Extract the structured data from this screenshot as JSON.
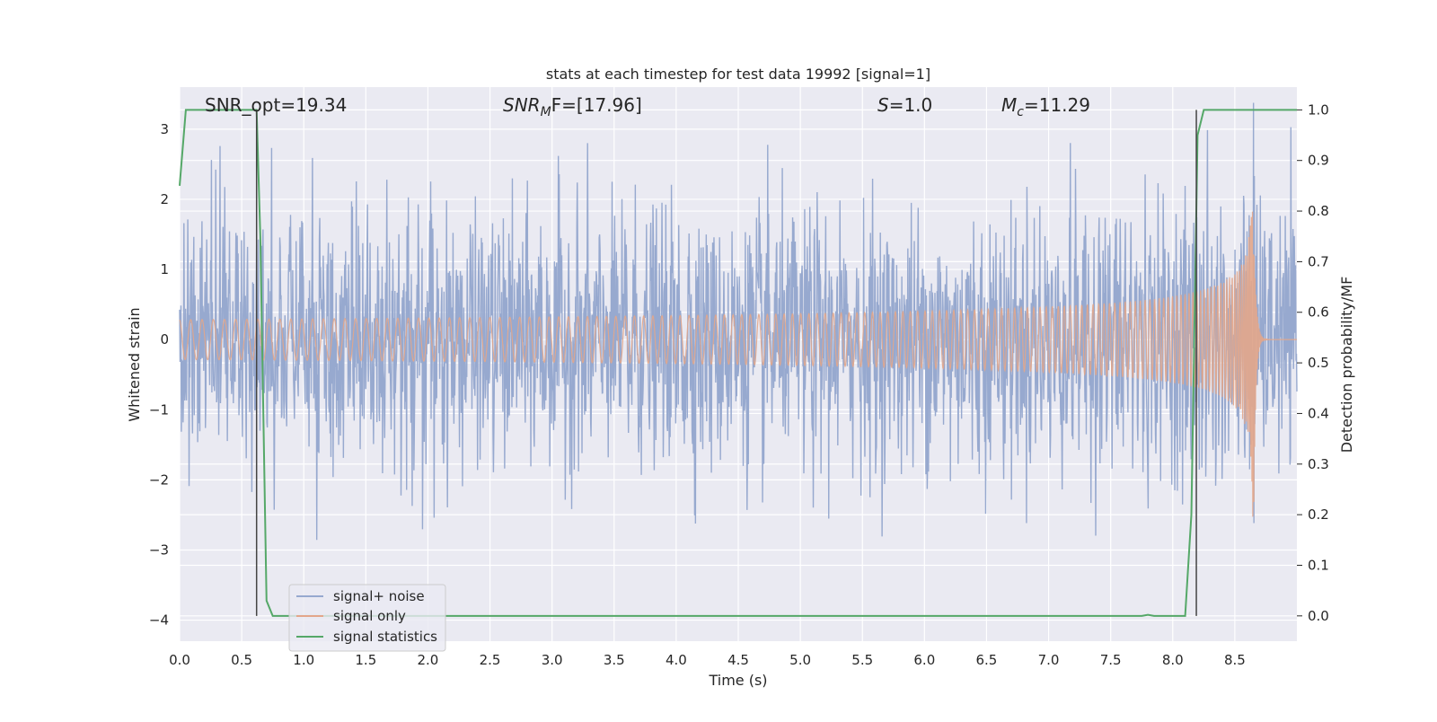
{
  "chart_data": {
    "type": "line",
    "title": "stats at each timestep for test data 19992 [signal=1]",
    "xlabel": "Time (s)",
    "ylabel": "Whitened strain",
    "y2label": "Detection probability/MF",
    "xlim": [
      0,
      9.0
    ],
    "ylim": [
      -4.3,
      3.6
    ],
    "y2lim": [
      -0.05,
      1.045
    ],
    "x_ticks": [
      0,
      0.5,
      1,
      1.5,
      2,
      2.5,
      3,
      3.5,
      4,
      4.5,
      5,
      5.5,
      6,
      6.5,
      7,
      7.5,
      8,
      8.5
    ],
    "x_tick_labels": [
      "0.0",
      "0.5",
      "1.0",
      "1.5",
      "2.0",
      "2.5",
      "3.0",
      "3.5",
      "4.0",
      "4.5",
      "5.0",
      "5.5",
      "6.0",
      "6.5",
      "7.0",
      "7.5",
      "8.0",
      "8.5"
    ],
    "y_ticks": [
      -4,
      -3,
      -2,
      -1,
      0,
      1,
      2,
      3
    ],
    "y_tick_labels": [
      "−4",
      "−3",
      "−2",
      "−1",
      "0",
      "1",
      "2",
      "3"
    ],
    "y2_ticks": [
      0,
      0.1,
      0.2,
      0.3,
      0.4,
      0.5,
      0.6,
      0.7,
      0.8,
      0.9,
      1.0
    ],
    "y2_tick_labels": [
      "0.0",
      "0.1",
      "0.2",
      "0.3",
      "0.4",
      "0.5",
      "0.6",
      "0.7",
      "0.8",
      "0.9",
      "1.0"
    ],
    "grid": true,
    "legend_position": "lower-left",
    "annotations": {
      "snr_opt": "SNR_opt=19.34",
      "snr_mf_main": "SNR",
      "snr_mf_sub": "M",
      "snr_mf_rest": "F=[17.96]",
      "s_main": "S",
      "s_rest": "=1.0",
      "mc_main": "M",
      "mc_sub": "c",
      "mc_rest": "=11.29"
    },
    "series": [
      {
        "name": "signal+ noise",
        "color": "#97a9cf",
        "axis": "left",
        "kind": "noise",
        "amplitude_sigma": 0.85
      },
      {
        "name": "signal only",
        "color": "#e3a68a",
        "axis": "left",
        "kind": "chirp",
        "merger_time": 8.65,
        "peak_amplitude": 2.85
      },
      {
        "name": "signal statistics",
        "color": "#55a868",
        "axis": "right",
        "x": [
          0.0,
          0.05,
          0.1,
          0.2,
          0.58,
          0.62,
          0.65,
          0.7,
          0.75,
          0.8,
          7.75,
          7.8,
          7.85,
          7.9,
          8.1,
          8.15,
          8.2,
          8.25,
          9.0
        ],
        "y": [
          0.85,
          1.0,
          1.0,
          1.0,
          1.0,
          1.0,
          0.75,
          0.03,
          0.0,
          0.0,
          0.0,
          0.002,
          0.0,
          0.0,
          0.0,
          0.2,
          0.95,
          1.0,
          1.0
        ]
      }
    ],
    "vertical_lines": [
      {
        "x": 0.62,
        "y_top": 1.0,
        "y_bottom": 0.0,
        "color": "#444444"
      },
      {
        "x": 8.19,
        "y_top": 1.0,
        "y_bottom": 0.0,
        "color": "#444444"
      }
    ]
  }
}
